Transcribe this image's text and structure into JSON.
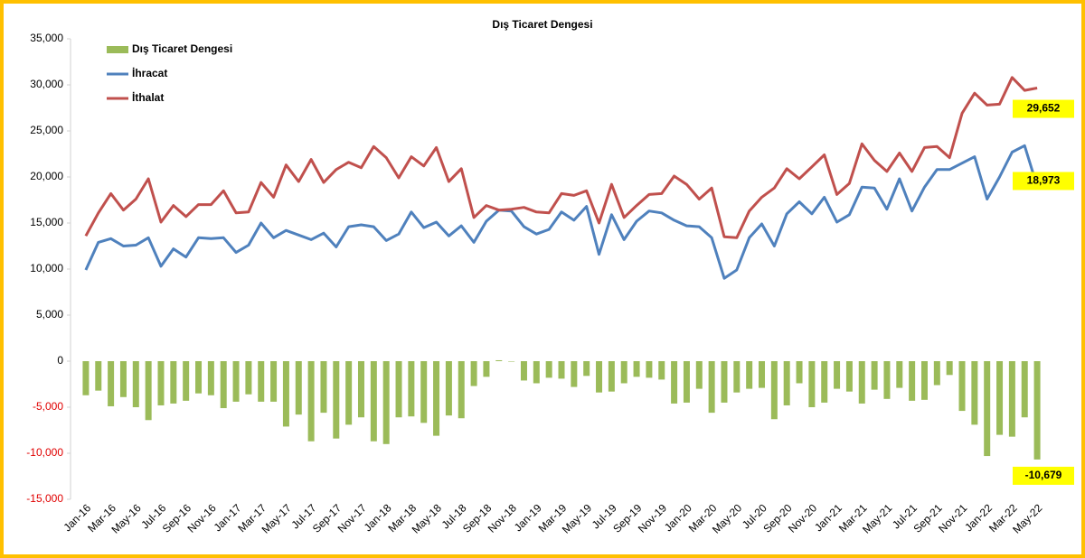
{
  "chart_data": {
    "type": "bar",
    "title": "Dış Ticaret Dengesi",
    "categories": [
      "Jan-16",
      null,
      "Mar-16",
      null,
      "May-16",
      null,
      "Jul-16",
      null,
      "Sep-16",
      null,
      "Nov-16",
      null,
      "Jan-17",
      null,
      "Mar-17",
      null,
      "May-17",
      null,
      "Jul-17",
      null,
      "Sep-17",
      null,
      "Nov-17",
      null,
      "Jan-18",
      null,
      "Mar-18",
      null,
      "May-18",
      null,
      "Jul-18",
      null,
      "Sep-18",
      null,
      "Nov-18",
      null,
      "Jan-19",
      null,
      "Mar-19",
      null,
      "May-19",
      null,
      "Jul-19",
      null,
      "Sep-19",
      null,
      "Nov-19",
      null,
      "Jan-20",
      null,
      "Mar-20",
      null,
      "May-20",
      null,
      "Jul-20",
      null,
      "Sep-20",
      null,
      "Nov-20",
      null,
      "Jan-21",
      null,
      "Mar-21",
      null,
      "May-21",
      null,
      "Jul-21",
      null,
      "Sep-21",
      null,
      "Nov-21",
      null,
      "Jan-22",
      null,
      "Mar-22",
      null,
      "May-22"
    ],
    "series": [
      {
        "name": "Dış Ticaret Dengesi",
        "type": "bar",
        "color": "#9bbb59",
        "values": [
          -3700,
          -3200,
          -4900,
          -3900,
          -5000,
          -6400,
          -4800,
          -4600,
          -4300,
          -3500,
          -3700,
          -5100,
          -4400,
          -3600,
          -4400,
          -4400,
          -7100,
          -5800,
          -8700,
          -5600,
          -8400,
          -6900,
          -6100,
          -8700,
          -9000,
          -6100,
          -6000,
          -6700,
          -8100,
          -5900,
          -6200,
          -2700,
          -1700,
          100,
          0,
          -2100,
          -2400,
          -1800,
          -1900,
          -2800,
          -1600,
          -3400,
          -3300,
          -2400,
          -1700,
          -1800,
          -2000,
          -4600,
          -4500,
          -3000,
          -5600,
          -4500,
          -3400,
          -3000,
          -2900,
          -6300,
          -4800,
          -2400,
          -5000,
          -4500,
          -3000,
          -3300,
          -4600,
          -3100,
          -4100,
          -2900,
          -4300,
          -4200,
          -2600,
          -1500,
          -5400,
          -6900,
          -10300,
          -8000,
          -8200,
          -6100,
          -10679
        ],
        "value_labels": [
          null,
          null,
          null,
          null,
          null,
          null,
          null,
          null,
          null,
          null,
          null,
          null,
          null,
          null,
          null,
          null,
          null,
          null,
          null,
          null,
          null,
          null,
          null,
          null,
          null,
          null,
          null,
          null,
          null,
          null,
          null,
          null,
          null,
          null,
          null,
          null,
          null,
          null,
          null,
          null,
          null,
          null,
          null,
          null,
          null,
          null,
          null,
          null,
          null,
          null,
          null,
          null,
          null,
          null,
          null,
          null,
          null,
          null,
          null,
          null,
          null,
          null,
          null,
          null,
          null,
          null,
          null,
          null,
          null,
          null,
          null,
          null,
          null,
          null,
          null,
          null,
          "-10,679"
        ]
      },
      {
        "name": "İhracat",
        "type": "line",
        "color": "#4f81bd",
        "values": [
          9900,
          12900,
          13300,
          12500,
          12600,
          13400,
          10300,
          12200,
          11300,
          13400,
          13300,
          13400,
          11800,
          12600,
          15000,
          13400,
          14200,
          13700,
          13200,
          13900,
          12400,
          14600,
          14800,
          14600,
          13100,
          13800,
          16200,
          14500,
          15100,
          13600,
          14700,
          12900,
          15200,
          16400,
          16300,
          14600,
          13800,
          14300,
          16200,
          15300,
          16800,
          11600,
          15900,
          13200,
          15200,
          16300,
          16100,
          15300,
          14700,
          14600,
          13400,
          9000,
          9900,
          13400,
          14900,
          12500,
          16000,
          17300,
          16000,
          17800,
          15100,
          15900,
          18900,
          18800,
          16500,
          19800,
          16300,
          18900,
          20800,
          20800,
          21500,
          22200,
          17600,
          20000,
          22700,
          23400,
          18973
        ],
        "value_labels": [
          null,
          null,
          null,
          null,
          null,
          null,
          null,
          null,
          null,
          null,
          null,
          null,
          null,
          null,
          null,
          null,
          null,
          null,
          null,
          null,
          null,
          null,
          null,
          null,
          null,
          null,
          null,
          null,
          null,
          null,
          null,
          null,
          null,
          null,
          null,
          null,
          null,
          null,
          null,
          null,
          null,
          null,
          null,
          null,
          null,
          null,
          null,
          null,
          null,
          null,
          null,
          null,
          null,
          null,
          null,
          null,
          null,
          null,
          null,
          null,
          null,
          null,
          null,
          null,
          null,
          null,
          null,
          null,
          null,
          null,
          null,
          null,
          null,
          null,
          null,
          null,
          "18,973"
        ]
      },
      {
        "name": "İthalat",
        "type": "line",
        "color": "#c0504d",
        "values": [
          13600,
          16100,
          18200,
          16400,
          17600,
          19800,
          15100,
          16900,
          15700,
          17000,
          17000,
          18500,
          16100,
          16200,
          19400,
          17800,
          21300,
          19500,
          21900,
          19400,
          20800,
          21600,
          21000,
          23300,
          22100,
          19900,
          22200,
          21200,
          23200,
          19500,
          20900,
          15600,
          16900,
          16400,
          16500,
          16700,
          16200,
          16100,
          18200,
          18000,
          18500,
          15000,
          19200,
          15600,
          16900,
          18100,
          18200,
          20100,
          19200,
          17600,
          18800,
          13500,
          13400,
          16300,
          17800,
          18800,
          20900,
          19800,
          21100,
          22400,
          18100,
          19300,
          23600,
          21800,
          20600,
          22600,
          20600,
          23200,
          23300,
          22100,
          26900,
          29100,
          27800,
          27900,
          30800,
          29400,
          29652
        ],
        "value_labels": [
          null,
          null,
          null,
          null,
          null,
          null,
          null,
          null,
          null,
          null,
          null,
          null,
          null,
          null,
          null,
          null,
          null,
          null,
          null,
          null,
          null,
          null,
          null,
          null,
          null,
          null,
          null,
          null,
          null,
          null,
          null,
          null,
          null,
          null,
          null,
          null,
          null,
          null,
          null,
          null,
          null,
          null,
          null,
          null,
          null,
          null,
          null,
          null,
          null,
          null,
          null,
          null,
          null,
          null,
          null,
          null,
          null,
          null,
          null,
          null,
          null,
          null,
          null,
          null,
          null,
          null,
          null,
          null,
          null,
          null,
          null,
          null,
          null,
          null,
          null,
          null,
          "29,652"
        ]
      }
    ],
    "ylim": [
      -15000,
      35000
    ],
    "yticks": [
      {
        "value": -15000,
        "label": "-15,000"
      },
      {
        "value": -10000,
        "label": "-10,000"
      },
      {
        "value": -5000,
        "label": "-5,000"
      },
      0,
      {
        "value": 5000,
        "label": "5,000"
      },
      {
        "value": 10000,
        "label": "10,000"
      },
      {
        "value": 15000,
        "label": "15,000"
      },
      {
        "value": 20000,
        "label": "20,000"
      },
      {
        "value": 25000,
        "label": "25,000"
      },
      {
        "value": 30000,
        "label": "30,000"
      },
      {
        "value": 35000,
        "label": "35,000"
      }
    ],
    "grid": false,
    "legend": "top-left"
  }
}
